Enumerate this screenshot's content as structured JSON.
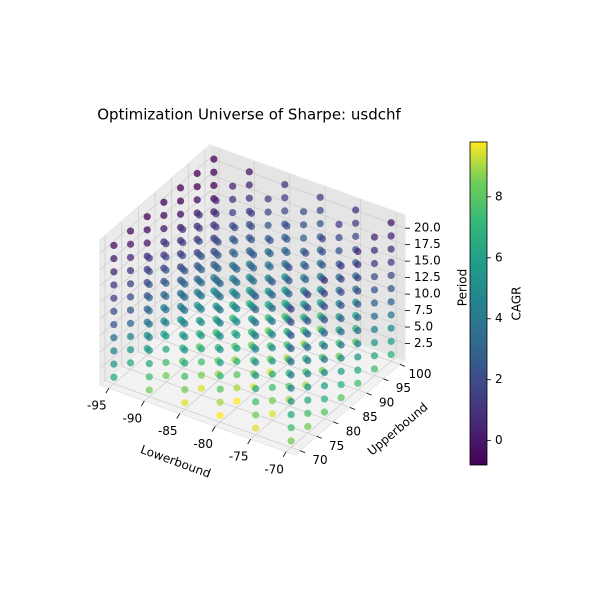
{
  "chart_data": {
    "type": "scatter3d",
    "title": "Optimization Universe of Sharpe: usdchf",
    "xlabel": "Lowerbound",
    "ylabel": "Upperbound",
    "zlabel": "Period",
    "colorbar_label": "CAGR",
    "colormap": "viridis",
    "lowerbound": [
      -95,
      -90,
      -85,
      -80,
      -75,
      -70
    ],
    "upperbound": [
      70,
      75,
      80,
      85,
      90,
      95,
      100
    ],
    "period": [
      1,
      3,
      5,
      7,
      9,
      11,
      13,
      15,
      17,
      19,
      21
    ],
    "xlim": [
      -96.25,
      -68.75
    ],
    "ylim": [
      68.5,
      101.5
    ],
    "zlim": [
      0,
      22
    ],
    "xticks": [
      -95,
      -90,
      -85,
      -80,
      -75,
      -70
    ],
    "yticks": [
      70,
      75,
      80,
      85,
      90,
      95,
      100
    ],
    "zticks": [
      {
        "value": 2.5,
        "label": "2.5"
      },
      {
        "value": 5,
        "label": "5.0"
      },
      {
        "value": 7.5,
        "label": "7.5"
      },
      {
        "value": 10,
        "label": "10.0"
      },
      {
        "value": 12.5,
        "label": "12.5"
      },
      {
        "value": 15,
        "label": "15.0"
      },
      {
        "value": 17.5,
        "label": "17.5"
      },
      {
        "value": 20,
        "label": "20.0"
      }
    ],
    "clim": [
      -0.8,
      9.8
    ],
    "cticks": [
      0,
      2,
      4,
      6,
      8
    ],
    "cagr": [
      [
        [
          6.5,
          5.5,
          4.5,
          3.5,
          2.5,
          2,
          1.5,
          1,
          0.5,
          0,
          -0.5
        ],
        [
          6.5,
          5.5,
          4.5,
          3.5,
          2.5,
          2,
          1.5,
          1,
          0.5,
          0,
          -0.5
        ],
        [
          6,
          5,
          4,
          3,
          2,
          1.5,
          1,
          0.5,
          0,
          -0.5,
          -0.8
        ],
        [
          6,
          5,
          4,
          3,
          2,
          1.5,
          1,
          0.5,
          0,
          -0.5,
          -0.8
        ],
        [
          5.5,
          4.5,
          3.5,
          2.5,
          1.5,
          1,
          0.5,
          0,
          -0.5,
          -0.8,
          -0.8
        ],
        [
          5.5,
          4.5,
          3.5,
          2.5,
          1.5,
          1,
          0.5,
          0,
          -0.5,
          -0.8,
          -0.8
        ],
        [
          5,
          4,
          3,
          2,
          1,
          0.5,
          0,
          -0.5,
          -0.8,
          -0.8,
          -0.8
        ]
      ],
      [
        [
          8.5,
          7.5,
          6.5,
          5.5,
          4.5,
          4,
          3.5,
          3,
          2.5,
          2,
          1.5
        ],
        [
          8.5,
          7.5,
          6.5,
          5.5,
          4.5,
          4,
          3.5,
          3,
          2.5,
          2,
          1.5
        ],
        [
          8,
          7,
          6,
          5,
          4,
          3.5,
          3,
          2.5,
          2,
          1.5,
          1
        ],
        [
          8,
          7,
          6,
          5,
          4,
          3.5,
          3,
          2.5,
          2,
          1.5,
          1
        ],
        [
          7.5,
          6.5,
          5.5,
          4.5,
          3.5,
          3,
          2.5,
          2,
          1.5,
          1,
          0.5
        ],
        [
          7.5,
          6.5,
          5.5,
          4.5,
          3.5,
          3,
          2.5,
          2,
          1.5,
          1,
          0.5
        ],
        [
          7,
          6,
          5,
          4,
          3,
          2.5,
          2,
          1.5,
          1,
          0.5,
          0
        ]
      ],
      [
        [
          9.5,
          8.5,
          7.5,
          6.5,
          5.5,
          5,
          4.5,
          4,
          3.5,
          3,
          2.5
        ],
        [
          9.5,
          8.5,
          7.5,
          6.5,
          5.5,
          5,
          4.5,
          4,
          3.5,
          3,
          2.5
        ],
        [
          9,
          8,
          7,
          6,
          5,
          4.5,
          4,
          3.5,
          3,
          2.5,
          2
        ],
        [
          9,
          8,
          7,
          6,
          5,
          4.5,
          4,
          3.5,
          3,
          2.5,
          2
        ],
        [
          8.5,
          7.5,
          6.5,
          5.5,
          4.5,
          4,
          3.5,
          3,
          2.5,
          2,
          1.5
        ],
        [
          8.5,
          7.5,
          6.5,
          5.5,
          4.5,
          4,
          3.5,
          3,
          2.5,
          2,
          1.5
        ],
        [
          8,
          7,
          6,
          5,
          4,
          3.5,
          3,
          2.5,
          2,
          1.5,
          1
        ]
      ],
      [
        [
          9.8,
          9,
          8,
          7,
          6,
          5.5,
          5,
          4.5,
          4,
          3.5,
          3
        ],
        [
          9.8,
          9,
          8,
          7,
          6,
          5.5,
          5,
          4.5,
          4,
          3.5,
          3
        ],
        [
          9.5,
          8.5,
          7.5,
          6.5,
          5.5,
          5,
          4.5,
          4,
          3.5,
          3,
          2.5
        ],
        [
          9.5,
          8.5,
          7.5,
          6.5,
          5.5,
          5,
          4.5,
          4,
          3.5,
          3,
          2.5
        ],
        [
          9,
          8,
          7,
          6,
          5,
          4.5,
          4,
          3.5,
          3,
          2.5,
          2
        ],
        [
          9,
          8,
          7,
          6,
          5,
          4.5,
          4,
          3.5,
          3,
          2.5,
          2
        ],
        [
          8.5,
          7.5,
          6.5,
          5.5,
          4.5,
          4,
          3.5,
          3,
          2.5,
          2,
          1.5
        ]
      ],
      [
        [
          9.5,
          8.5,
          7.5,
          6.5,
          5.5,
          5,
          4.5,
          4,
          3.5,
          3,
          2.5
        ],
        [
          9.5,
          8.5,
          7.5,
          6.5,
          5.5,
          5,
          4.5,
          4,
          3.5,
          3,
          2.5
        ],
        [
          9,
          8,
          7,
          6,
          5,
          4.5,
          4,
          3.5,
          3,
          2.5,
          2
        ],
        [
          9,
          8,
          7,
          6,
          5,
          4.5,
          4,
          3.5,
          3,
          2.5,
          2
        ],
        [
          8.5,
          7.5,
          6.5,
          5.5,
          4.5,
          4,
          3.5,
          3,
          2.5,
          2,
          1.5
        ],
        [
          8.5,
          7.5,
          6.5,
          5.5,
          4.5,
          4,
          3.5,
          3,
          2.5,
          2,
          1.5
        ],
        [
          8,
          7,
          6,
          5,
          4,
          3.5,
          3,
          2.5,
          2,
          1.5,
          1
        ]
      ],
      [
        [
          8.5,
          7.5,
          6.5,
          5.5,
          4.5,
          4,
          3.5,
          3,
          2.5,
          2,
          1.5
        ],
        [
          8.5,
          7.5,
          6.5,
          5.5,
          4.5,
          4,
          3.5,
          3,
          2.5,
          2,
          1.5
        ],
        [
          8,
          7,
          6,
          5,
          4,
          3.5,
          3,
          2.5,
          2,
          1.5,
          1
        ],
        [
          8,
          7,
          6,
          5,
          4,
          3.5,
          3,
          2.5,
          2,
          1.5,
          1
        ],
        [
          7.5,
          6.5,
          5.5,
          4.5,
          3.5,
          3,
          2.5,
          2,
          1.5,
          1,
          0.5
        ],
        [
          7.5,
          6.5,
          5.5,
          4.5,
          3.5,
          3,
          2.5,
          2,
          1.5,
          1,
          0.5
        ],
        [
          7,
          6,
          5,
          4,
          3,
          2.5,
          2,
          1.5,
          1,
          0.5,
          0
        ]
      ]
    ]
  }
}
